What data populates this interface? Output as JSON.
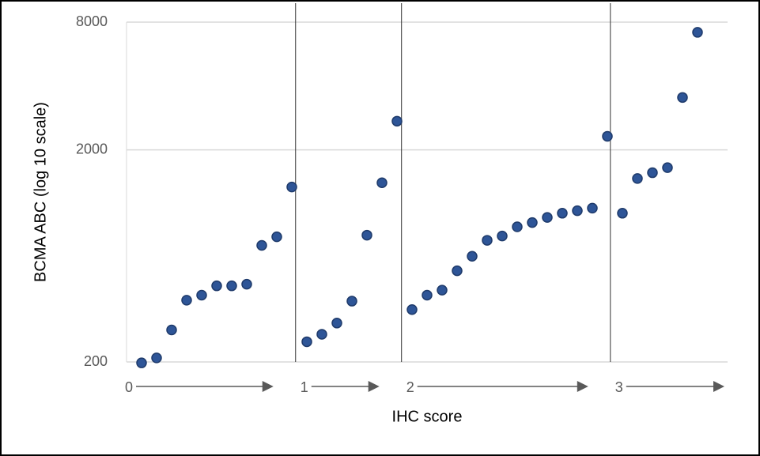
{
  "chart_data": {
    "type": "scatter",
    "x": [
      1,
      2,
      3,
      4,
      5,
      6,
      7,
      8,
      9,
      10,
      11,
      12,
      13,
      14,
      15,
      16,
      17,
      18,
      19,
      20,
      21,
      22,
      23,
      24,
      25,
      26,
      27,
      28,
      29,
      30,
      31,
      32,
      33,
      34,
      35,
      36,
      37,
      38
    ],
    "values": [
      198,
      209,
      283,
      391,
      413,
      457,
      457,
      465,
      709,
      778,
      1336,
      249,
      270,
      305,
      387,
      792,
      1399,
      2730,
      353,
      413,
      436,
      538,
      630,
      749,
      785,
      867,
      908,
      960,
      1005,
      1033,
      1062,
      2317,
      1005,
      1465,
      1560,
      1648,
      3531,
      7160
    ],
    "color": "#2e5597",
    "xlim": [
      0,
      40
    ],
    "ylim": [
      200,
      8000
    ],
    "yticks": [
      200,
      2000,
      8000
    ],
    "log_y": true,
    "grid": true,
    "ylabel": "BCMA ABC (log 10 scale)",
    "xlabel": "IHC score",
    "ihc_labels": [
      "0",
      "1",
      "2",
      "3"
    ],
    "dividers": [
      11.25,
      18.3,
      32.2
    ]
  }
}
